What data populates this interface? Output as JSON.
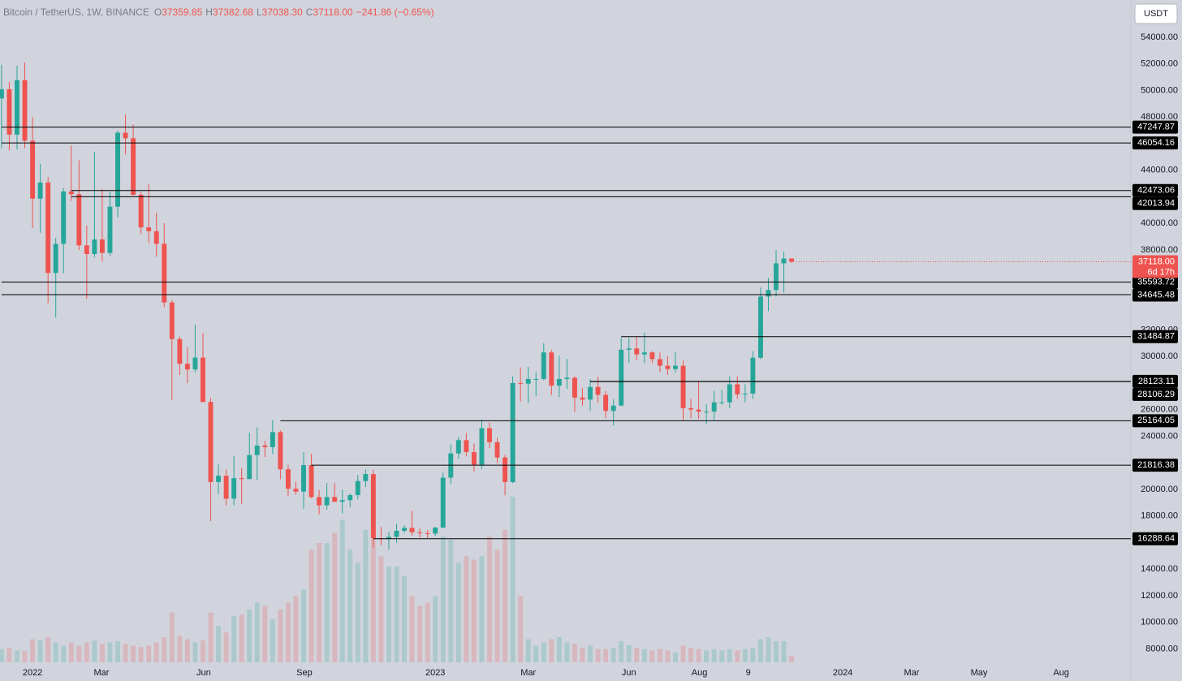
{
  "chart_data": {
    "type": "candlestick",
    "title": "Bitcoin / TetherUS, 1W, BINANCE",
    "legend_items": [
      {
        "key": "O",
        "value": "37359.85"
      },
      {
        "key": "H",
        "value": "37382.68"
      },
      {
        "key": "L",
        "value": "37038.30"
      },
      {
        "key": "C",
        "value": "37118.00"
      }
    ],
    "change": "−241.86 (−0.65%)",
    "currency": "USDT",
    "last_price_label": "37118.00",
    "countdown": "6d 17h",
    "up_color": "#26a69a",
    "down_color": "#ef5350",
    "open": [
      49396,
      50098,
      46681,
      50775,
      46217,
      41864,
      43079,
      36276,
      38466,
      42412,
      42200,
      38350,
      37700,
      38800,
      37780,
      41262,
      46827,
      46407,
      42158,
      39700,
      39418,
      38469,
      34060,
      31305,
      29445,
      29019,
      29910,
      26574,
      20553,
      21028,
      19300,
      20846,
      20780,
      22580,
      23296,
      23175,
      24305,
      21515,
      20050,
      19831,
      21826,
      19420,
      18800,
      19423,
      19068,
      19184,
      19570,
      20627,
      21150,
      16330,
      16275,
      16428,
      16884,
      17100,
      16774,
      16700,
      16674,
      17127,
      20880,
      22700,
      23700,
      22800,
      21860,
      24600,
      23550,
      22400,
      20550,
      28000,
      27950,
      28300,
      28300,
      30300,
      27800,
      28300,
      28400,
      26900,
      26750,
      27700,
      27110,
      25900,
      26300,
      30500,
      30600,
      30150,
      30300,
      29800,
      29300,
      29050,
      29300,
      26100,
      26000,
      25850,
      25850,
      26550,
      26550,
      27900,
      27150,
      27200,
      29900,
      34500,
      35000,
      37000,
      37359.85
    ],
    "high": [
      51936,
      50650,
      51875,
      52088,
      47990,
      44500,
      43505,
      38919,
      42656,
      45855,
      44750,
      39843,
      45400,
      42594,
      42400,
      47000,
      48189,
      47444,
      42400,
      42976,
      40797,
      40023,
      34243,
      31500,
      30700,
      32400,
      31750,
      26880,
      21868,
      21500,
      22500,
      21600,
      24276,
      24668,
      23647,
      25211,
      24446,
      21861,
      20580,
      22800,
      22673,
      19956,
      20471,
      20475,
      19951,
      19700,
      21085,
      21480,
      21473,
      17190,
      16812,
      17424,
      17300,
      18387,
      17061,
      16950,
      17176,
      21259,
      23371,
      23955,
      24255,
      23450,
      25250,
      25022,
      23880,
      22600,
      28500,
      29184,
      29200,
      28800,
      31000,
      30500,
      30036,
      29820,
      28500,
      27600,
      28300,
      28450,
      27400,
      26800,
      31400,
      31400,
      31500,
      31800,
      30400,
      30300,
      30000,
      30300,
      29690,
      26820,
      28145,
      26430,
      27400,
      27486,
      28500,
      28500,
      27900,
      30400,
      35200,
      35900,
      38000,
      37900,
      37382.68
    ],
    "low": [
      45672,
      45500,
      45558,
      45678,
      39650,
      39300,
      34008,
      32918,
      36250,
      41700,
      38000,
      34322,
      37450,
      37155,
      37578,
      40467,
      45200,
      42100,
      39200,
      38536,
      37500,
      33700,
      26700,
      28600,
      28000,
      28800,
      26560,
      17622,
      19637,
      18800,
      18800,
      18910,
      20750,
      20706,
      22432,
      22664,
      20761,
      19520,
      19600,
      18540,
      19320,
      18125,
      18471,
      19100,
      18190,
      18650,
      19250,
      20180,
      15588,
      15800,
      15476,
      15966,
      16720,
      16528,
      16398,
      16333,
      16500,
      17085,
      20400,
      22300,
      22500,
      21351,
      21532,
      23100,
      21971,
      19549,
      20470,
      26600,
      26500,
      27000,
      28200,
      27100,
      26950,
      27550,
      25811,
      26300,
      25900,
      26500,
      25350,
      24800,
      26250,
      29500,
      29700,
      29500,
      29500,
      28800,
      28600,
      28800,
      25166,
      25350,
      25300,
      24901,
      25200,
      26360,
      26100,
      26800,
      26550,
      26800,
      29800,
      33400,
      34500,
      34800,
      37038.3
    ],
    "close": [
      50098,
      46681,
      50775,
      46217,
      41864,
      43079,
      36276,
      38466,
      42412,
      42200,
      38350,
      37700,
      38800,
      37780,
      41262,
      46827,
      46407,
      42158,
      39700,
      39418,
      38469,
      34060,
      31305,
      29445,
      29019,
      29910,
      26574,
      20553,
      21028,
      19300,
      20846,
      20780,
      22580,
      23296,
      23175,
      24305,
      21515,
      20050,
      19831,
      21826,
      19420,
      18800,
      19423,
      19068,
      19184,
      19570,
      20627,
      21150,
      16330,
      16275,
      16428,
      16884,
      17100,
      16774,
      16700,
      16674,
      17127,
      20880,
      22700,
      23700,
      22800,
      21860,
      24600,
      23550,
      22400,
      20550,
      28000,
      27950,
      28300,
      28300,
      30300,
      27800,
      28300,
      28400,
      26900,
      26750,
      27700,
      27110,
      25900,
      26300,
      30500,
      30600,
      30150,
      30300,
      29800,
      29300,
      29050,
      29300,
      26100,
      26000,
      25850,
      25850,
      26550,
      26550,
      27900,
      27150,
      27200,
      29900,
      34500,
      35000,
      37000,
      37359.85,
      37118
    ],
    "volume": [
      200000,
      220000,
      180000,
      170000,
      350000,
      330000,
      380000,
      300000,
      250000,
      300000,
      250000,
      300000,
      330000,
      280000,
      300000,
      320000,
      280000,
      250000,
      230000,
      250000,
      300000,
      380000,
      750000,
      400000,
      350000,
      300000,
      330000,
      750000,
      550000,
      450000,
      700000,
      720000,
      800000,
      900000,
      850000,
      650000,
      800000,
      900000,
      1000000,
      1100000,
      1700000,
      1800000,
      1800000,
      1950000,
      2150000,
      1700000,
      1500000,
      2000000,
      2100000,
      1600000,
      1450000,
      1450000,
      1300000,
      1000000,
      850000,
      900000,
      1000000,
      1900000,
      1850000,
      1500000,
      1600000,
      1550000,
      1600000,
      1900000,
      1700000,
      2000000,
      2500000,
      1000000,
      350000,
      250000,
      300000,
      350000,
      380000,
      300000,
      280000,
      220000,
      250000,
      200000,
      200000,
      220000,
      320000,
      260000,
      220000,
      200000,
      180000,
      200000,
      180000,
      150000,
      250000,
      220000,
      200000,
      180000,
      200000,
      180000,
      200000,
      180000,
      200000,
      220000,
      350000,
      380000,
      320000,
      320000,
      100000
    ],
    "volume_lim": [
      0,
      3000000
    ],
    "ylim": [
      6991,
      56808
    ],
    "yticks": [
      {
        "value": 54000,
        "label": "54000.00"
      },
      {
        "value": 52000,
        "label": "52000.00"
      },
      {
        "value": 50000,
        "label": "50000.00"
      },
      {
        "value": 48000,
        "label": "48000.00"
      },
      {
        "value": 44000,
        "label": "44000.00"
      },
      {
        "value": 40000,
        "label": "40000.00"
      },
      {
        "value": 38000,
        "label": "38000.00"
      },
      {
        "value": 32000,
        "label": "32000.00"
      },
      {
        "value": 30000,
        "label": "30000.00"
      },
      {
        "value": 26000,
        "label": "26000.00"
      },
      {
        "value": 24000,
        "label": "24000.00"
      },
      {
        "value": 20000,
        "label": "20000.00"
      },
      {
        "value": 18000,
        "label": "18000.00"
      },
      {
        "value": 14000,
        "label": "14000.00"
      },
      {
        "value": 12000,
        "label": "12000.00"
      },
      {
        "value": 10000,
        "label": "10000.00"
      },
      {
        "value": 8000,
        "label": "8000.00"
      }
    ],
    "xlim": [
      -0.2,
      145.8
    ],
    "xticks": [
      {
        "value": 4,
        "label": "2022"
      },
      {
        "value": 12.9,
        "label": "Mar"
      },
      {
        "value": 26.1,
        "label": "Jun"
      },
      {
        "value": 39.1,
        "label": "Sep"
      },
      {
        "value": 56,
        "label": "2023"
      },
      {
        "value": 68,
        "label": "Mar"
      },
      {
        "value": 81,
        "label": "Jun"
      },
      {
        "value": 90.1,
        "label": "Aug"
      },
      {
        "value": 96.4,
        "label": "9"
      },
      {
        "value": 108.6,
        "label": "2024"
      },
      {
        "value": 117.5,
        "label": "Mar"
      },
      {
        "value": 126.2,
        "label": "May"
      },
      {
        "value": 136.8,
        "label": "Aug"
      }
    ],
    "levels": [
      {
        "value": 47247.87,
        "label": "47247.87",
        "start": 0
      },
      {
        "value": 46054.16,
        "label": "46054.16",
        "start": 0
      },
      {
        "value": 42473.06,
        "label": "42473.06",
        "start": 9
      },
      {
        "value": 42013.94,
        "label": "42013.94",
        "start": 9
      },
      {
        "value": 35593.72,
        "label": "35593.72",
        "start": 0
      },
      {
        "value": 34645.48,
        "label": "34645.48",
        "start": 0
      },
      {
        "value": 31484.87,
        "label": "31484.87",
        "start": 80
      },
      {
        "value": 28123.11,
        "label": "28123.11",
        "start": 76
      },
      {
        "value": 28106.29,
        "label": "28106.29",
        "start": 76
      },
      {
        "value": 25164.05,
        "label": "25164.05",
        "start": 36
      },
      {
        "value": 21816.38,
        "label": "21816.38",
        "start": 40
      },
      {
        "value": 16288.64,
        "label": "16288.64",
        "start": 48
      }
    ],
    "grid": false
  }
}
